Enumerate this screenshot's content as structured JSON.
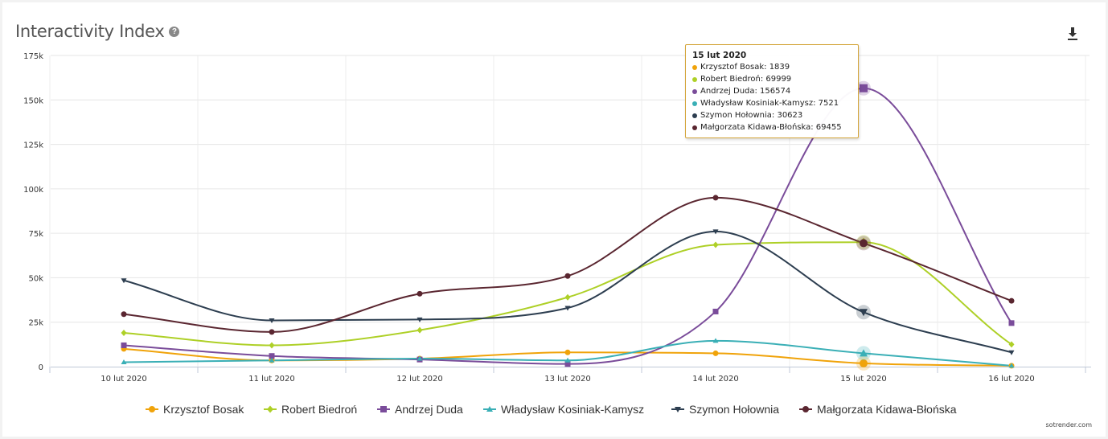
{
  "header": {
    "title": "Interactivity Index",
    "help_icon": "?",
    "download_icon": "download-icon"
  },
  "watermark": "sotrender.com",
  "colors": {
    "Krzysztof Bosak": "#f0a30a",
    "Robert Biedroń": "#aed027",
    "Andrzej Duda": "#7a4c9a",
    "Władysław Kosiniak-Kamysz": "#3aafb6",
    "Szymon Hołownia": "#2d3e50",
    "Małgorzata Kidawa-Błońska": "#5a2630"
  },
  "chart_data": {
    "type": "line",
    "title": "Interactivity Index",
    "x": [
      "10 lut 2020",
      "11 lut 2020",
      "12 lut 2020",
      "13 lut 2020",
      "14 lut 2020",
      "15 lut 2020",
      "16 lut 2020"
    ],
    "y_ticks": [
      "0",
      "25k",
      "50k",
      "75k",
      "100k",
      "125k",
      "150k",
      "175k"
    ],
    "ylim": [
      0,
      175000
    ],
    "grid": true,
    "legend": "bottom",
    "series": [
      {
        "name": "Krzysztof Bosak",
        "marker": "circle",
        "values": [
          10000,
          3500,
          4500,
          8000,
          7500,
          1839,
          500
        ]
      },
      {
        "name": "Robert Biedroń",
        "marker": "diamond",
        "values": [
          19000,
          12000,
          20500,
          39000,
          68500,
          69999,
          12500
        ]
      },
      {
        "name": "Andrzej Duda",
        "marker": "square",
        "values": [
          12000,
          6000,
          4000,
          1500,
          31000,
          156574,
          24500
        ]
      },
      {
        "name": "Władysław Kosiniak-Kamysz",
        "marker": "triangle",
        "values": [
          2500,
          3500,
          4500,
          3500,
          14500,
          7521,
          500
        ]
      },
      {
        "name": "Szymon Hołownia",
        "marker": "triangle-down",
        "values": [
          48500,
          26000,
          26500,
          33000,
          76000,
          30623,
          8000
        ]
      },
      {
        "name": "Małgorzata Kidawa-Błońska",
        "marker": "circle",
        "values": [
          29500,
          19500,
          41000,
          51000,
          95000,
          69455,
          37000
        ]
      }
    ],
    "tooltip": {
      "title": "15 lut 2020",
      "rows": [
        "Krzysztof Bosak: 1839",
        "Robert Biedroń: 69999",
        "Andrzej Duda: 156574",
        "Władysław Kosiniak-Kamysz: 7521",
        "Szymon Hołownia: 30623",
        "Małgorzata Kidawa-Błońska: 69455"
      ]
    }
  }
}
